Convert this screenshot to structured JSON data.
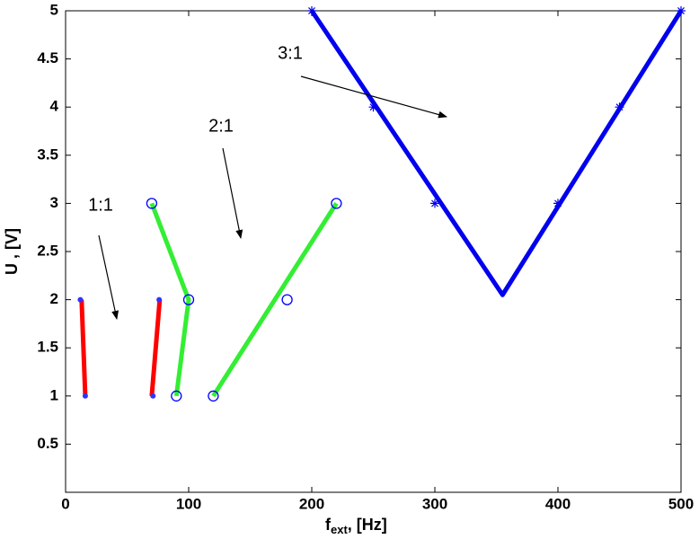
{
  "chart_data": {
    "type": "line",
    "xlabel": {
      "base": "f",
      "sub": "ext",
      "rest": ", [Hz]"
    },
    "ylabel": "U , [V]",
    "xlim": [
      0,
      500
    ],
    "xticks": [
      0,
      100,
      200,
      300,
      400,
      500
    ],
    "ylim": [
      0,
      5
    ],
    "yticks": [
      0.5,
      1,
      1.5,
      2,
      2.5,
      3,
      3.5,
      4,
      4.5,
      5
    ],
    "series": [
      {
        "color": "#ff0000",
        "marker": "none",
        "x": [
          13,
          16
        ],
        "values": [
          2,
          1
        ]
      },
      {
        "color": "#ff0000",
        "marker": "none",
        "x": [
          70,
          76.5
        ],
        "values": [
          1,
          2
        ]
      },
      {
        "color": "#3333ff",
        "marker": "dot",
        "x": [
          12,
          16,
          71,
          76
        ],
        "values": [
          2,
          1,
          1,
          2
        ]
      },
      {
        "color": "#33ee33",
        "marker": "none",
        "x": [
          70,
          100,
          90
        ],
        "values": [
          3,
          2,
          1
        ]
      },
      {
        "color": "#33ee33",
        "marker": "none",
        "x": [
          120,
          220
        ],
        "values": [
          1,
          3
        ]
      },
      {
        "color": "#0000ff",
        "marker": "circle",
        "x": [
          70,
          100,
          90,
          120,
          180,
          220
        ],
        "values": [
          3,
          2,
          1,
          1,
          2,
          3
        ]
      },
      {
        "color": "#0000ee",
        "marker": "none",
        "x": [
          200,
          355,
          500
        ],
        "values": [
          5,
          2.05,
          5
        ]
      },
      {
        "color": "#0000ee",
        "marker": "star",
        "x": [
          200,
          250,
          300,
          400,
          450,
          500
        ],
        "values": [
          5,
          4,
          3,
          3,
          4,
          5
        ]
      }
    ],
    "annotations": [
      "1:1",
      "2:1",
      "3:1"
    ]
  }
}
